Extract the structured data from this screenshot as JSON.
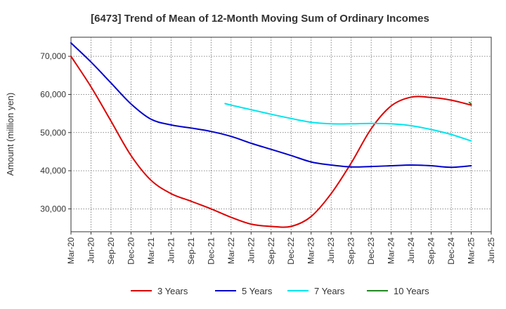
{
  "chart_data": {
    "type": "line",
    "title": "[6473]  Trend of Mean of 12-Month Moving Sum of Ordinary Incomes",
    "xlabel": "",
    "ylabel": "Amount (million yen)",
    "ylim": [
      24000,
      75000
    ],
    "yticks": [
      30000,
      40000,
      50000,
      60000,
      70000
    ],
    "ytick_labels": [
      "30,000",
      "40,000",
      "50,000",
      "60,000",
      "70,000"
    ],
    "categories": [
      "Mar-20",
      "Jun-20",
      "Sep-20",
      "Dec-20",
      "Mar-21",
      "Jun-21",
      "Sep-21",
      "Dec-21",
      "Mar-22",
      "Jun-22",
      "Sep-22",
      "Dec-22",
      "Mar-23",
      "Jun-23",
      "Sep-23",
      "Dec-23",
      "Mar-24",
      "Jun-24",
      "Sep-24",
      "Dec-24",
      "Mar-25",
      "Jun-25"
    ],
    "grid": true,
    "legend_position": "bottom",
    "series": [
      {
        "name": "3 Years",
        "color": "#dd0000",
        "points": [
          [
            0,
            70000
          ],
          [
            1,
            62000
          ],
          [
            2,
            53000
          ],
          [
            3,
            44000
          ],
          [
            4,
            37500
          ],
          [
            5,
            34000
          ],
          [
            6,
            32000
          ],
          [
            7,
            30000
          ],
          [
            8,
            27800
          ],
          [
            9,
            26000
          ],
          [
            10,
            25400
          ],
          [
            11,
            25400
          ],
          [
            12,
            28000
          ],
          [
            13,
            34000
          ],
          [
            14,
            42000
          ],
          [
            15,
            51000
          ],
          [
            16,
            57000
          ],
          [
            17,
            59300
          ],
          [
            18,
            59200
          ],
          [
            19,
            58500
          ],
          [
            20,
            57200
          ]
        ]
      },
      {
        "name": "5 Years",
        "color": "#0000cc",
        "points": [
          [
            0,
            73500
          ],
          [
            1,
            68500
          ],
          [
            2,
            63000
          ],
          [
            3,
            57500
          ],
          [
            4,
            53500
          ],
          [
            5,
            52000
          ],
          [
            6,
            51200
          ],
          [
            7,
            50300
          ],
          [
            8,
            49000
          ],
          [
            9,
            47200
          ],
          [
            10,
            45600
          ],
          [
            11,
            44000
          ],
          [
            12,
            42300
          ],
          [
            13,
            41500
          ],
          [
            14,
            41000
          ],
          [
            15,
            41100
          ],
          [
            16,
            41300
          ],
          [
            17,
            41500
          ],
          [
            18,
            41300
          ],
          [
            19,
            40900
          ],
          [
            20,
            41300
          ]
        ]
      },
      {
        "name": "7 Years",
        "color": "#00e5ee",
        "points": [
          [
            7.7,
            57600
          ],
          [
            8,
            57200
          ],
          [
            9,
            56000
          ],
          [
            10,
            54800
          ],
          [
            11,
            53700
          ],
          [
            12,
            52700
          ],
          [
            13,
            52300
          ],
          [
            14,
            52300
          ],
          [
            15,
            52400
          ],
          [
            16,
            52300
          ],
          [
            17,
            51800
          ],
          [
            18,
            50800
          ],
          [
            19,
            49500
          ],
          [
            20,
            47800
          ]
        ]
      },
      {
        "name": "10 Years",
        "color": "#228822",
        "points": [
          [
            19.9,
            57900
          ],
          [
            20,
            57500
          ]
        ]
      }
    ]
  }
}
